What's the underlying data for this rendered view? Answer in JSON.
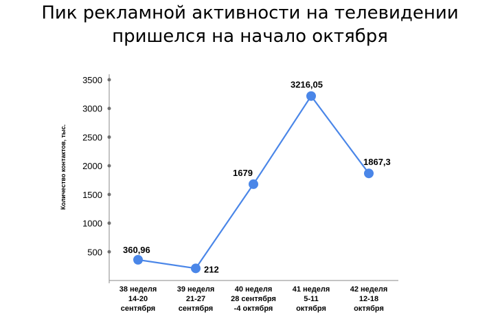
{
  "header": {
    "title_line1": "Пик рекламной активности на телевидении",
    "title_line2": "пришелся на начало октября"
  },
  "chart_data": {
    "type": "line",
    "title": "Пик рекламной активности на телевидении пришелся на начало октября",
    "ylabel": "Количество контактов, тыс.",
    "xlabel": "",
    "ylim": [
      0,
      3500
    ],
    "yticks": [
      500,
      1000,
      1500,
      2000,
      2500,
      3000,
      3500
    ],
    "categories": [
      [
        "38 неделя",
        "14-20",
        "сентября"
      ],
      [
        "39 неделя",
        "21-27",
        "сентября"
      ],
      [
        "40 неделя",
        "28 сентября",
        "-4 октября"
      ],
      [
        "41 неделя",
        "5-11",
        "октября"
      ],
      [
        "42 неделя",
        "12-18",
        "октября"
      ]
    ],
    "values": [
      360.96,
      212,
      1679,
      3216.05,
      1867.3
    ],
    "data_labels": [
      "360,96",
      "212",
      "1679",
      "3216,05",
      "1867,3"
    ],
    "color": "#4a86e8",
    "axis_color": "#888888",
    "grid": false,
    "legend": "none"
  }
}
